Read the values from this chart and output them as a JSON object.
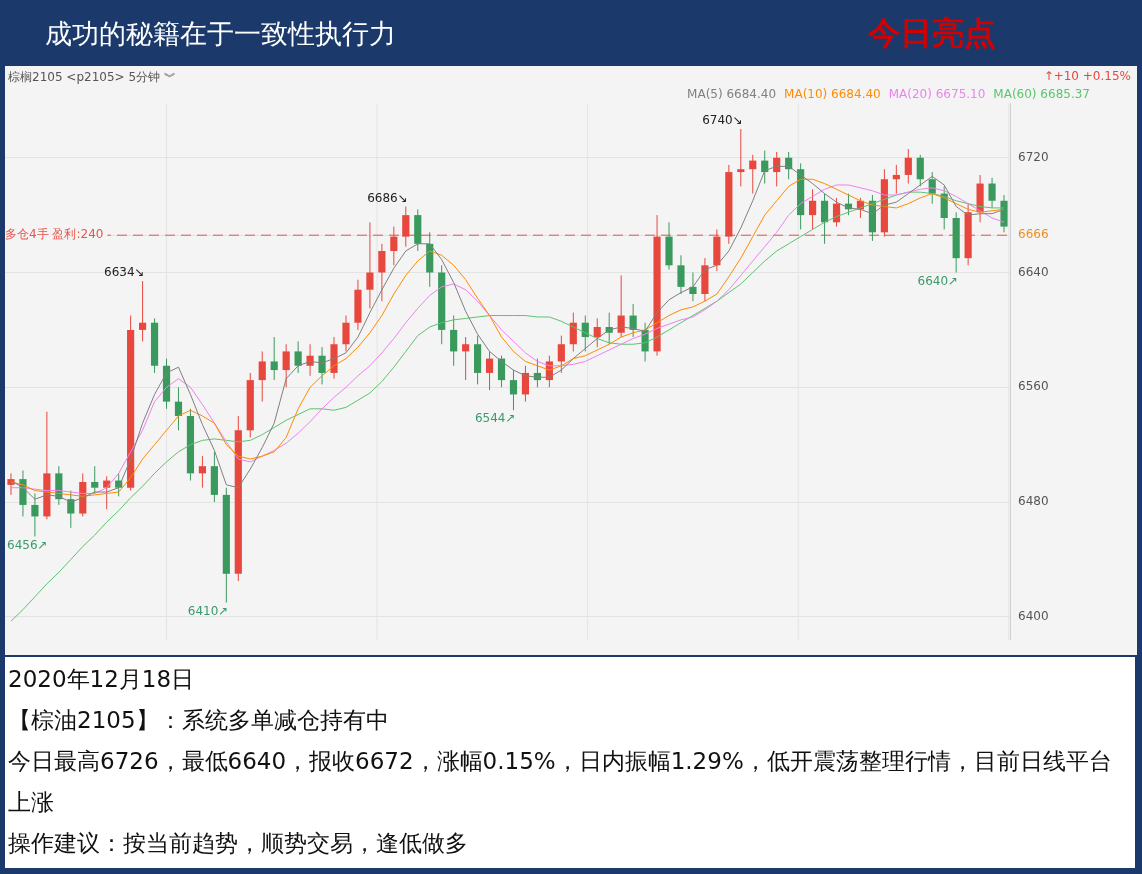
{
  "chart_data": {
    "type": "candlestick",
    "title": "成功的秘籍在于一致性执行力",
    "subtitle": "今日亮点",
    "categories": [
      null,
      null,
      null,
      null,
      null,
      null,
      null,
      null,
      null,
      null,
      null,
      null,
      null,
      null,
      null,
      null,
      null,
      null,
      null,
      null,
      null,
      null,
      null,
      null,
      null,
      null,
      null,
      null,
      null,
      null,
      null,
      null,
      null,
      null,
      null,
      null,
      null,
      null,
      null,
      null,
      null,
      null,
      null,
      null,
      null,
      null,
      null,
      null,
      null,
      null,
      null,
      null,
      null,
      null,
      null,
      null,
      null,
      null,
      null,
      null,
      null,
      null,
      null,
      null,
      null,
      null,
      null,
      null,
      null,
      null,
      null,
      null,
      null,
      null,
      null,
      null,
      null,
      null,
      null,
      null,
      null,
      null,
      null,
      null
    ],
    "ohlc": [
      [
        6492,
        6500,
        6485,
        6496
      ],
      [
        6496,
        6502,
        6470,
        6478
      ],
      [
        6478,
        6486,
        6456,
        6470
      ],
      [
        6470,
        6543,
        6468,
        6500
      ],
      [
        6500,
        6505,
        6478,
        6482
      ],
      [
        6482,
        6488,
        6462,
        6472
      ],
      [
        6472,
        6500,
        6470,
        6494
      ],
      [
        6494,
        6505,
        6486,
        6490
      ],
      [
        6490,
        6498,
        6475,
        6495
      ],
      [
        6495,
        6500,
        6484,
        6490
      ],
      [
        6490,
        6610,
        6488,
        6600
      ],
      [
        6600,
        6634,
        6592,
        6605
      ],
      [
        6605,
        6608,
        6570,
        6575
      ],
      [
        6575,
        6580,
        6545,
        6550
      ],
      [
        6550,
        6560,
        6530,
        6540
      ],
      [
        6540,
        6545,
        6495,
        6500
      ],
      [
        6500,
        6512,
        6490,
        6505
      ],
      [
        6505,
        6515,
        6480,
        6485
      ],
      [
        6485,
        6490,
        6410,
        6430
      ],
      [
        6430,
        6540,
        6425,
        6530
      ],
      [
        6530,
        6570,
        6525,
        6565
      ],
      [
        6565,
        6585,
        6550,
        6578
      ],
      [
        6578,
        6595,
        6565,
        6572
      ],
      [
        6572,
        6590,
        6560,
        6585
      ],
      [
        6585,
        6592,
        6570,
        6575
      ],
      [
        6575,
        6590,
        6568,
        6582
      ],
      [
        6582,
        6588,
        6562,
        6570
      ],
      [
        6570,
        6595,
        6566,
        6590
      ],
      [
        6590,
        6610,
        6585,
        6605
      ],
      [
        6605,
        6635,
        6600,
        6628
      ],
      [
        6628,
        6675,
        6615,
        6640
      ],
      [
        6640,
        6660,
        6620,
        6655
      ],
      [
        6655,
        6672,
        6645,
        6665
      ],
      [
        6665,
        6686,
        6658,
        6680
      ],
      [
        6680,
        6684,
        6655,
        6660
      ],
      [
        6660,
        6668,
        6630,
        6640
      ],
      [
        6640,
        6645,
        6590,
        6600
      ],
      [
        6600,
        6610,
        6575,
        6585
      ],
      [
        6585,
        6595,
        6565,
        6590
      ],
      [
        6590,
        6596,
        6562,
        6570
      ],
      [
        6570,
        6585,
        6558,
        6580
      ],
      [
        6580,
        6582,
        6560,
        6565
      ],
      [
        6565,
        6572,
        6544,
        6555
      ],
      [
        6555,
        6575,
        6550,
        6570
      ],
      [
        6570,
        6580,
        6560,
        6565
      ],
      [
        6565,
        6582,
        6560,
        6578
      ],
      [
        6578,
        6596,
        6570,
        6590
      ],
      [
        6590,
        6612,
        6585,
        6605
      ],
      [
        6605,
        6610,
        6585,
        6595
      ],
      [
        6595,
        6608,
        6588,
        6602
      ],
      [
        6602,
        6612,
        6590,
        6598
      ],
      [
        6598,
        6638,
        6595,
        6610
      ],
      [
        6610,
        6618,
        6595,
        6600
      ],
      [
        6600,
        6605,
        6578,
        6585
      ],
      [
        6585,
        6680,
        6582,
        6665
      ],
      [
        6665,
        6675,
        6642,
        6645
      ],
      [
        6645,
        6652,
        6625,
        6630
      ],
      [
        6630,
        6640,
        6620,
        6625
      ],
      [
        6625,
        6650,
        6620,
        6645
      ],
      [
        6645,
        6670,
        6641,
        6665
      ],
      [
        6665,
        6715,
        6660,
        6710
      ],
      [
        6710,
        6740,
        6700,
        6712
      ],
      [
        6712,
        6722,
        6695,
        6718
      ],
      [
        6718,
        6725,
        6702,
        6710
      ],
      [
        6710,
        6724,
        6700,
        6720
      ],
      [
        6720,
        6724,
        6705,
        6712
      ],
      [
        6712,
        6716,
        6670,
        6680
      ],
      [
        6680,
        6698,
        6670,
        6690
      ],
      [
        6690,
        6695,
        6660,
        6675
      ],
      [
        6675,
        6692,
        6672,
        6688
      ],
      [
        6688,
        6695,
        6680,
        6684
      ],
      [
        6684,
        6692,
        6678,
        6690
      ],
      [
        6690,
        6694,
        6662,
        6668
      ],
      [
        6668,
        6712,
        6665,
        6705
      ],
      [
        6705,
        6715,
        6695,
        6708
      ],
      [
        6708,
        6726,
        6702,
        6720
      ],
      [
        6720,
        6722,
        6700,
        6705
      ],
      [
        6705,
        6710,
        6688,
        6695
      ],
      [
        6695,
        6700,
        6670,
        6678
      ],
      [
        6678,
        6682,
        6640,
        6650
      ],
      [
        6650,
        6688,
        6645,
        6682
      ],
      [
        6682,
        6708,
        6675,
        6702
      ],
      [
        6702,
        6706,
        6685,
        6690
      ],
      [
        6690,
        6694,
        6668,
        6672
      ]
    ],
    "colors": [
      "#e8473e",
      "#3a9a5e",
      "#3a9a5e",
      "#e8473e",
      "#3a9a5e",
      "#3a9a5e",
      "#e8473e",
      "#3a9a5e",
      "#e8473e",
      "#3a9a5e",
      "#e8473e",
      "#e8473e",
      "#3a9a5e",
      "#3a9a5e",
      "#3a9a5e",
      "#3a9a5e",
      "#e8473e",
      "#3a9a5e",
      "#3a9a5e",
      "#e8473e",
      "#e8473e",
      "#e8473e",
      "#3a9a5e",
      "#e8473e",
      "#3a9a5e",
      "#e8473e",
      "#3a9a5e",
      "#e8473e",
      "#e8473e",
      "#e8473e",
      "#e8473e",
      "#e8473e",
      "#e8473e",
      "#e8473e",
      "#3a9a5e",
      "#3a9a5e",
      "#3a9a5e",
      "#3a9a5e",
      "#e8473e",
      "#3a9a5e",
      "#e8473e",
      "#3a9a5e",
      "#3a9a5e",
      "#e8473e",
      "#3a9a5e",
      "#e8473e",
      "#e8473e",
      "#e8473e",
      "#3a9a5e",
      "#e8473e",
      "#3a9a5e",
      "#e8473e",
      "#3a9a5e",
      "#3a9a5e",
      "#e8473e",
      "#3a9a5e",
      "#3a9a5e",
      "#3a9a5e",
      "#e8473e",
      "#e8473e",
      "#e8473e",
      "#e8473e",
      "#e8473e",
      "#3a9a5e",
      "#e8473e",
      "#3a9a5e",
      "#3a9a5e",
      "#e8473e",
      "#3a9a5e",
      "#e8473e",
      "#3a9a5e",
      "#e8473e",
      "#3a9a5e",
      "#e8473e",
      "#e8473e",
      "#e8473e",
      "#3a9a5e",
      "#3a9a5e",
      "#3a9a5e",
      "#3a9a5e",
      "#e8473e",
      "#e8473e",
      "#3a9a5e",
      "#3a9a5e"
    ],
    "series": [
      {
        "type": "line",
        "name": "MA(5) 6684.40",
        "color": "#808080",
        "values": [
          6495,
          6490,
          6482,
          6485,
          6484,
          6480,
          6483,
          6487,
          6487,
          6490,
          6510,
          6535,
          6555,
          6570,
          6574,
          6555,
          6534,
          6516,
          6492,
          6490,
          6503,
          6518,
          6535,
          6566,
          6575,
          6578,
          6577,
          6580,
          6584,
          6595,
          6612,
          6628,
          6643,
          6655,
          6660,
          6660,
          6649,
          6633,
          6613,
          6597,
          6585,
          6578,
          6572,
          6568,
          6567,
          6567,
          6572,
          6580,
          6587,
          6594,
          6600,
          6602,
          6601,
          6599,
          6612,
          6621,
          6626,
          6630,
          6642,
          6645,
          6655,
          6671,
          6690,
          6711,
          6714,
          6714,
          6708,
          6702,
          6695,
          6689,
          6685,
          6684,
          6681,
          6687,
          6689,
          6695,
          6701,
          6707,
          6701,
          6686,
          6680,
          6681,
          6681,
          6684
        ]
      },
      {
        "type": "line",
        "name": "MA(10) 6684.40",
        "color": "#ff8c00",
        "values": [
          6494,
          6492,
          6488,
          6487,
          6486,
          6485,
          6484,
          6485,
          6486,
          6487,
          6497,
          6510,
          6520,
          6530,
          6540,
          6544,
          6540,
          6535,
          6520,
          6512,
          6510,
          6512,
          6515,
          6525,
          6545,
          6560,
          6568,
          6575,
          6580,
          6588,
          6598,
          6610,
          6625,
          6638,
          6648,
          6655,
          6652,
          6645,
          6635,
          6622,
          6610,
          6595,
          6585,
          6578,
          6575,
          6572,
          6575,
          6580,
          6582,
          6586,
          6590,
          6595,
          6598,
          6600,
          6605,
          6610,
          6614,
          6616,
          6620,
          6625,
          6637,
          6650,
          6665,
          6680,
          6690,
          6700,
          6705,
          6705,
          6702,
          6698,
          6694,
          6690,
          6687,
          6686,
          6685,
          6688,
          6692,
          6695,
          6692,
          6688,
          6684,
          6682,
          6683,
          6684
        ]
      },
      {
        "type": "line",
        "name": "MA(20) 6675.10",
        "color": "#ee82ee",
        "values": [
          6490,
          6490,
          6489,
          6488,
          6488,
          6487,
          6486,
          6486,
          6490,
          6500,
          6515,
          6530,
          6550,
          6560,
          6566,
          6560,
          6548,
          6535,
          6522,
          6510,
          6508,
          6512,
          6516,
          6521,
          6528,
          6536,
          6545,
          6553,
          6560,
          6568,
          6575,
          6584,
          6594,
          6605,
          6615,
          6624,
          6630,
          6632,
          6628,
          6620,
          6610,
          6600,
          6592,
          6584,
          6578,
          6575,
          6575,
          6576,
          6578,
          6582,
          6586,
          6590,
          6594,
          6597,
          6601,
          6604,
          6607,
          6609,
          6614,
          6620,
          6628,
          6638,
          6648,
          6658,
          6668,
          6680,
          6688,
          6693,
          6698,
          6701,
          6701,
          6699,
          6697,
          6694,
          6694,
          6696,
          6698,
          6699,
          6697,
          6693,
          6688,
          6683,
          6678,
          6675
        ]
      },
      {
        "type": "line",
        "name": "MA(60) 6685.37",
        "color": "#5cc46e",
        "values": [
          6397,
          6405,
          6414,
          6423,
          6431,
          6440,
          6449,
          6457,
          6466,
          6474,
          6483,
          6491,
          6500,
          6508,
          6515,
          6520,
          6523,
          6524,
          6523,
          6522,
          6523,
          6527,
          6532,
          6537,
          6541,
          6545,
          6545,
          6544,
          6546,
          6551,
          6556,
          6564,
          6574,
          6585,
          6596,
          6602,
          6605,
          6607,
          6608,
          6609,
          6610,
          6610,
          6610,
          6610,
          6609,
          6609,
          6606,
          6602,
          6598,
          6594,
          6591,
          6590,
          6590,
          6591,
          6595,
          6600,
          6605,
          6610,
          6615,
          6620,
          6626,
          6632,
          6640,
          6648,
          6655,
          6660,
          6665,
          6670,
          6675,
          6679,
          6682,
          6685,
          6688,
          6691,
          6694,
          6696,
          6696,
          6695,
          6693,
          6690,
          6688,
          6686,
          6685,
          6685
        ]
      }
    ],
    "ylim": [
      6384,
      6758
    ],
    "yticks": [
      6400,
      6480,
      6560,
      6640,
      {
        "value": 6666,
        "label": "6666"
      },
      6720
    ],
    "value_labels": [
      null,
      null,
      "6456↗",
      null,
      null,
      null,
      null,
      null,
      null,
      null,
      null,
      "6634↘",
      null,
      null,
      null,
      null,
      null,
      null,
      "6410↗",
      null,
      null,
      null,
      null,
      null,
      null,
      null,
      null,
      null,
      null,
      null,
      null,
      null,
      null,
      "6686↘",
      null,
      null,
      null,
      null,
      null,
      null,
      null,
      null,
      "6544↗",
      null,
      null,
      null,
      null,
      null,
      null,
      null,
      null,
      null,
      null,
      null,
      null,
      null,
      null,
      null,
      null,
      null,
      null,
      "6740↘",
      null,
      null,
      null,
      null,
      null,
      null,
      null,
      null,
      null,
      null,
      null,
      null,
      null,
      null,
      null,
      null,
      null,
      "6640↗",
      null,
      null,
      null,
      null
    ],
    "grid": true,
    "legend": "top right",
    "tick_labels": "y",
    "ref_lines": [
      {
        "axis": "y",
        "value": 6666,
        "color": "#e8534a",
        "line_style": "dashed"
      }
    ],
    "annotations": [
      "棕榈2105 <p2105> 5分钟 ︾",
      "↑+10 +0.15%",
      "多仓4手 盈利:240",
      "2020年12月18日",
      "【棕油2105】：系统多单减仓持有中",
      "今日最高6726，最低6640，报收6672，涨幅0.15%，日内振幅1.29%，低开震荡整理行情，目前日线平台上涨",
      "操作建议：按当前趋势，顺势交易，逢低做多"
    ]
  }
}
